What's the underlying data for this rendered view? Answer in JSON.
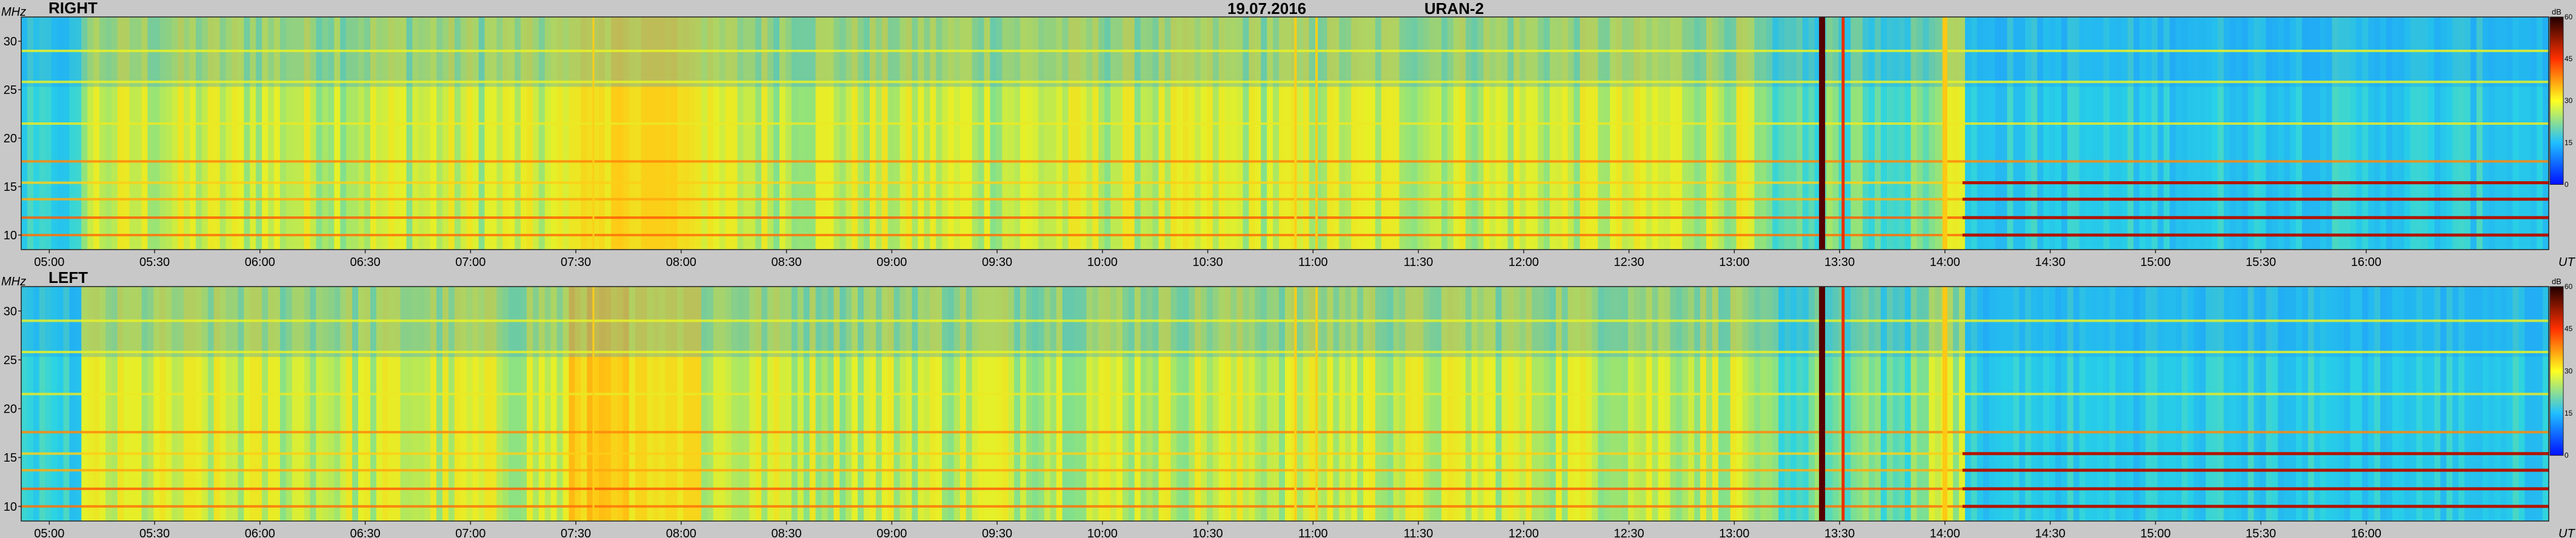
{
  "header": {
    "date": "19.07.2016",
    "station": "URAN-2"
  },
  "chart_data": [
    {
      "type": "heatmap",
      "title": "RIGHT",
      "ylabel": "MHz",
      "xlabel": "UT",
      "ylim": [
        8.5,
        32.5
      ],
      "yticks": [
        10,
        15,
        20,
        25,
        30
      ],
      "x_range": [
        "04:52",
        "16:52"
      ],
      "xticks": [
        "05:00",
        "05:30",
        "06:00",
        "06:30",
        "07:00",
        "07:30",
        "08:00",
        "08:30",
        "09:00",
        "09:30",
        "10:00",
        "10:30",
        "11:00",
        "11:30",
        "12:00",
        "12:30",
        "13:00",
        "13:30",
        "14:00",
        "14:30",
        "15:00",
        "15:30",
        "16:00"
      ],
      "colorbar": {
        "unit": "dB",
        "ticks": [
          0,
          15,
          30,
          45,
          60
        ],
        "range": [
          0,
          60
        ]
      }
    },
    {
      "type": "heatmap",
      "title": "LEFT",
      "ylabel": "MHz",
      "xlabel": "UT",
      "ylim": [
        8.5,
        32.5
      ],
      "yticks": [
        10,
        15,
        20,
        25,
        30
      ],
      "x_range": [
        "04:52",
        "16:52"
      ],
      "xticks": [
        "05:00",
        "05:30",
        "06:00",
        "06:30",
        "07:00",
        "07:30",
        "08:00",
        "08:30",
        "09:00",
        "09:30",
        "10:00",
        "10:30",
        "11:00",
        "11:30",
        "12:00",
        "12:30",
        "13:00",
        "13:30",
        "14:00",
        "14:30",
        "15:00",
        "15:30",
        "16:00"
      ],
      "colorbar": {
        "unit": "dB",
        "ticks": [
          0,
          15,
          30,
          45,
          60
        ],
        "range": [
          0,
          60
        ]
      }
    }
  ],
  "colors": {
    "background": "#c8c8c8",
    "heat_low": "#1030ff",
    "heat_mid": "#20d0e0",
    "heat_high": "#ffee20",
    "heat_peak": "#e02000",
    "heat_max": "#200000"
  }
}
